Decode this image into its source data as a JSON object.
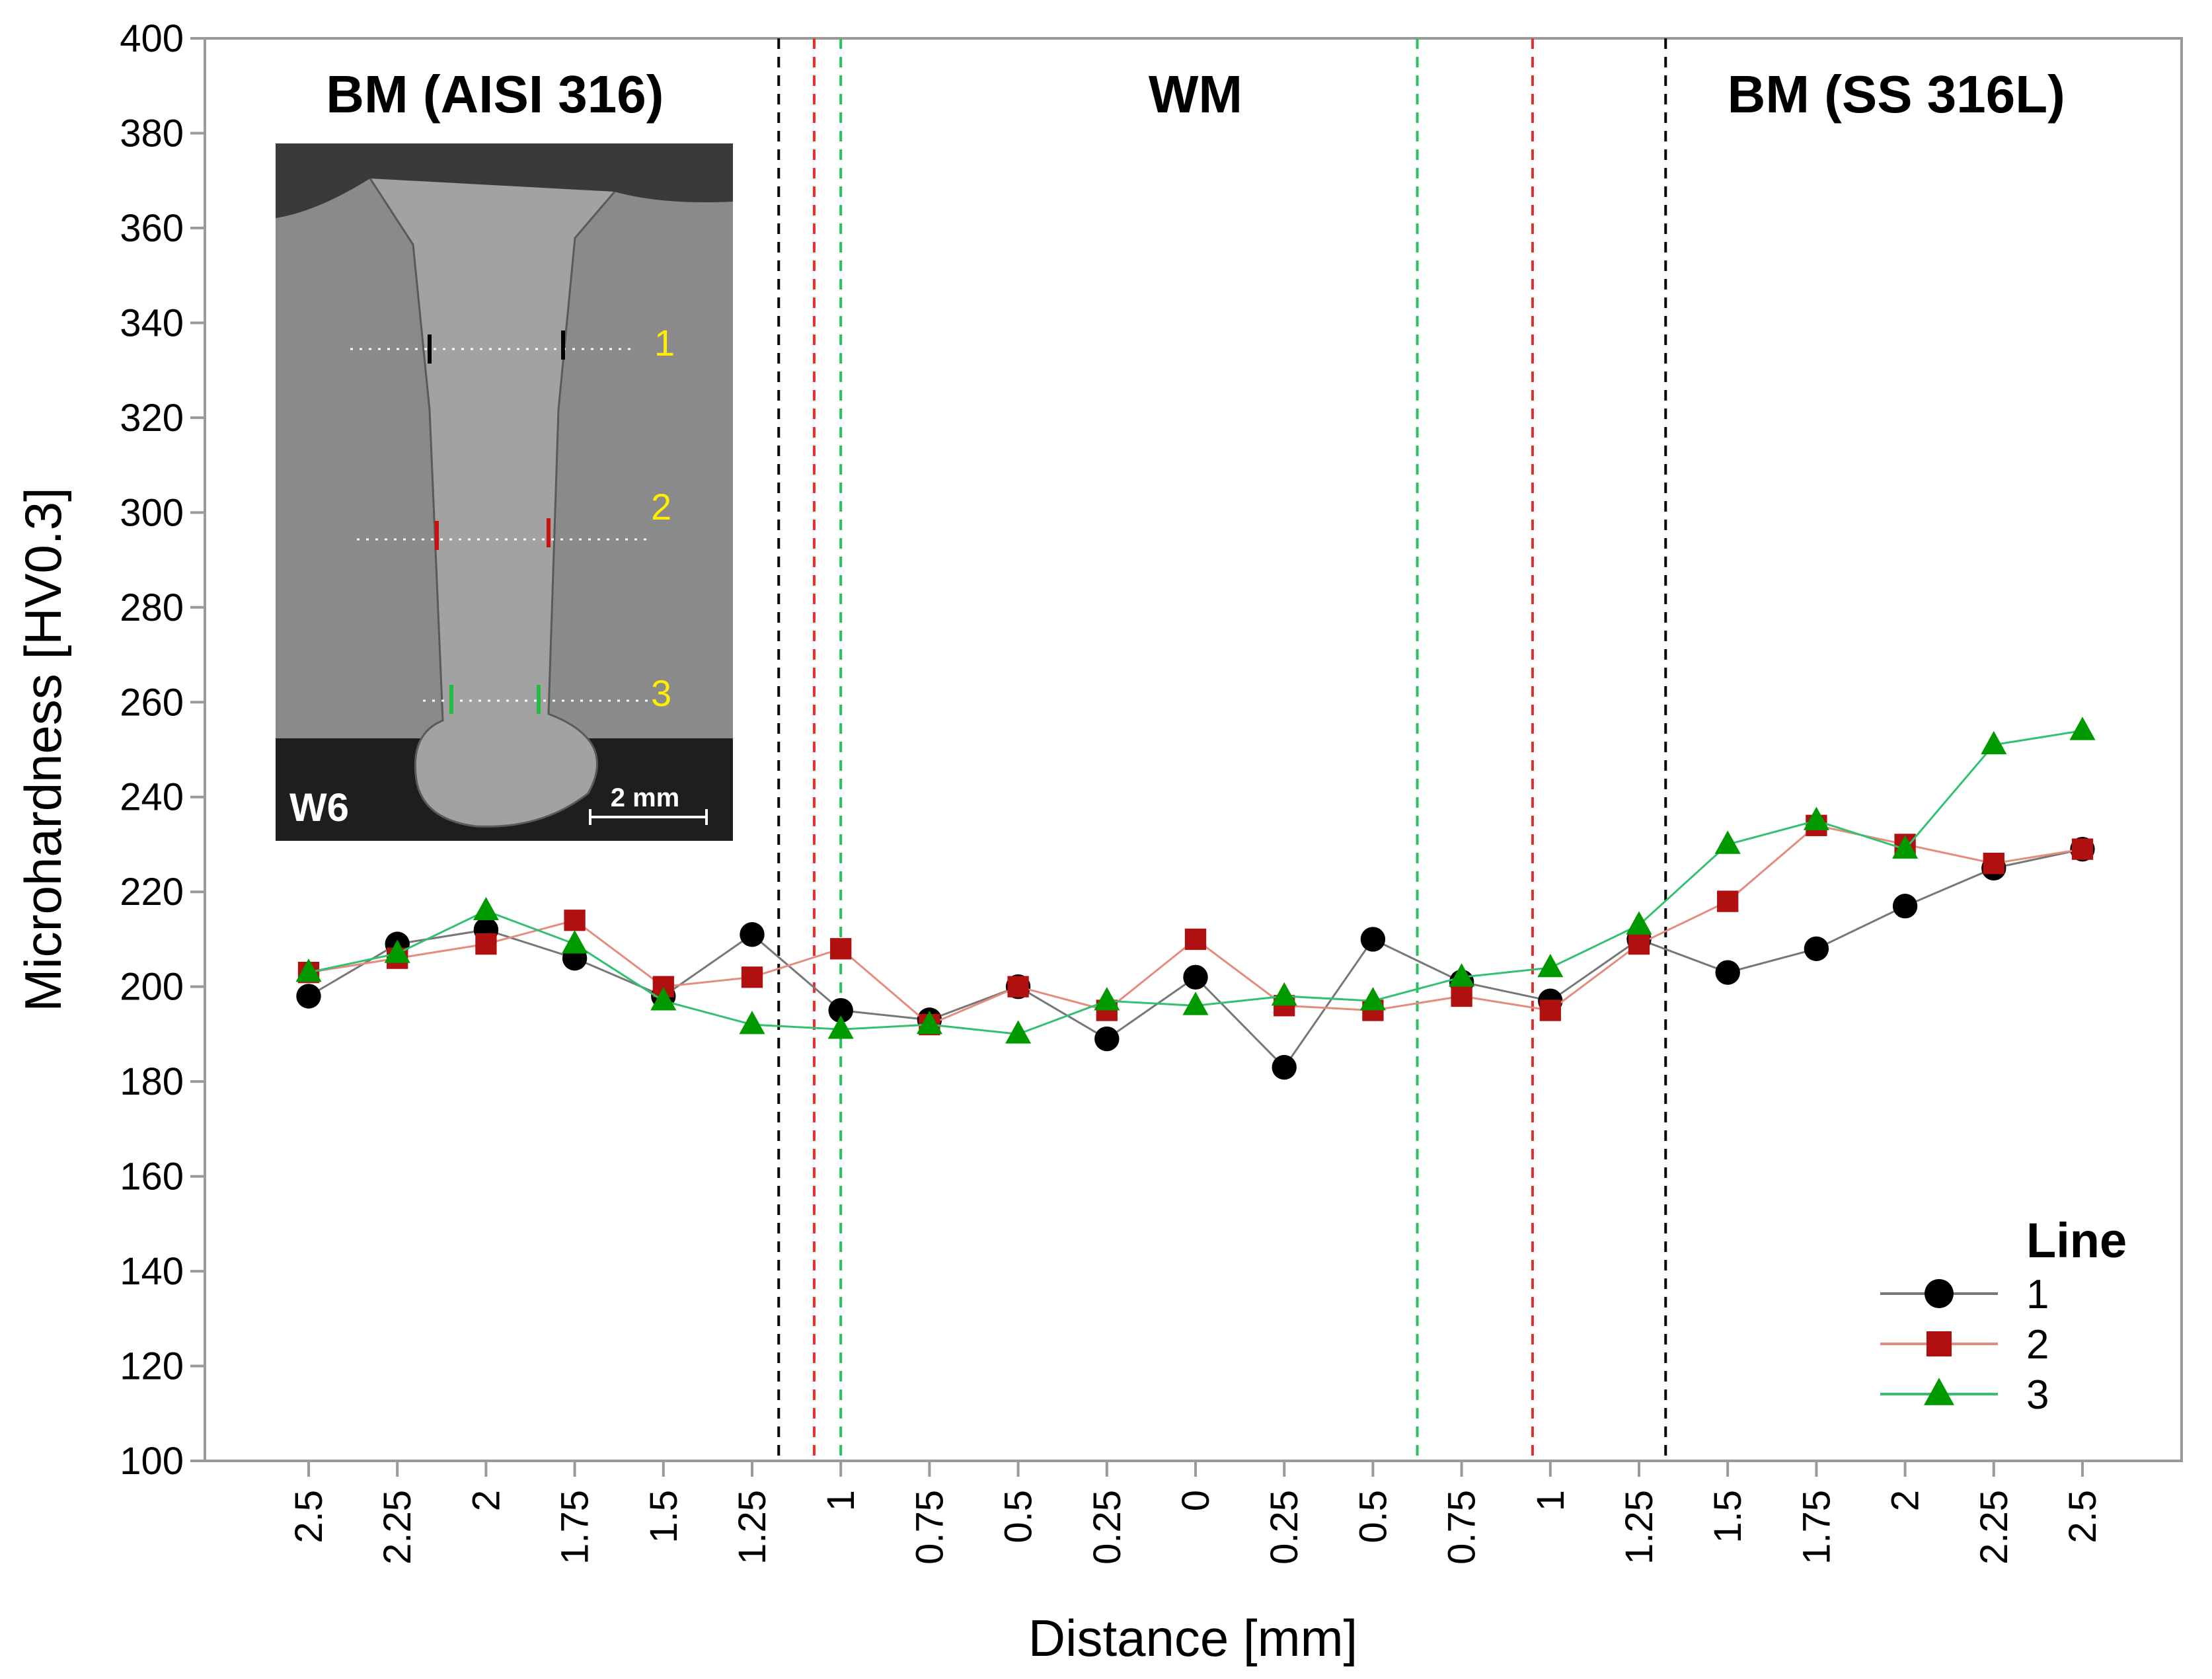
{
  "chart_data": {
    "type": "line",
    "xlabel": "Distance [mm]",
    "ylabel": "Microhardness [HV0.3]",
    "ylim": [
      100,
      400
    ],
    "yticks": [
      100,
      120,
      140,
      160,
      180,
      200,
      220,
      240,
      260,
      280,
      300,
      320,
      340,
      360,
      380,
      400
    ],
    "categories": [
      "2.5",
      "2.25",
      "2",
      "1.75",
      "1.5",
      "1.25",
      "1",
      "0.75",
      "0.5",
      "0.25",
      "0",
      "0.25",
      "0.5",
      "0.75",
      "1",
      "1.25",
      "1.5",
      "1.75",
      "2",
      "2.25",
      "2.5"
    ],
    "series": [
      {
        "name": "1",
        "color": "#000000",
        "line_color": "#777777",
        "marker": "circle",
        "values": [
          198,
          209,
          212,
          206,
          198,
          211,
          195,
          193,
          200,
          189,
          202,
          183,
          210,
          201,
          197,
          210,
          203,
          208,
          217,
          225,
          229
        ]
      },
      {
        "name": "2",
        "color": "#b01010",
        "line_color": "#e58b80",
        "marker": "square",
        "values": [
          203,
          206,
          209,
          214,
          200,
          202,
          208,
          192,
          200,
          195,
          210,
          196,
          195,
          198,
          195,
          209,
          218,
          234,
          230,
          226,
          229
        ]
      },
      {
        "name": "3",
        "color": "#009900",
        "line_color": "#33c070",
        "marker": "triangle",
        "values": [
          203,
          207,
          216,
          209,
          197,
          192,
          191,
          192,
          190,
          197,
          196,
          198,
          197,
          202,
          204,
          213,
          230,
          235,
          229,
          251,
          254
        ]
      }
    ],
    "boundaries": [
      {
        "position": 5.3,
        "color": "#000000"
      },
      {
        "position": 5.7,
        "color": "#e23030"
      },
      {
        "position": 6.0,
        "color": "#2cc060"
      },
      {
        "position": 12.5,
        "color": "#2cc060"
      },
      {
        "position": 13.8,
        "color": "#e23030"
      },
      {
        "position": 15.3,
        "color": "#000000"
      }
    ],
    "region_labels": [
      {
        "text": "BM (AISI 316)",
        "center": 2.1
      },
      {
        "text": "WM",
        "center": 10.0
      },
      {
        "text": "BM (SS 316L)",
        "center": 17.9
      }
    ],
    "legend": {
      "title": "Line",
      "entries": [
        "1",
        "2",
        "3"
      ],
      "placement": "bottom-right"
    },
    "inset": {
      "sample_label": "W6",
      "scale_bar": "2 mm",
      "line_labels": [
        "1",
        "2",
        "3"
      ],
      "marker_colors": [
        "#000000",
        "#cc1010",
        "#22bb44"
      ]
    }
  }
}
